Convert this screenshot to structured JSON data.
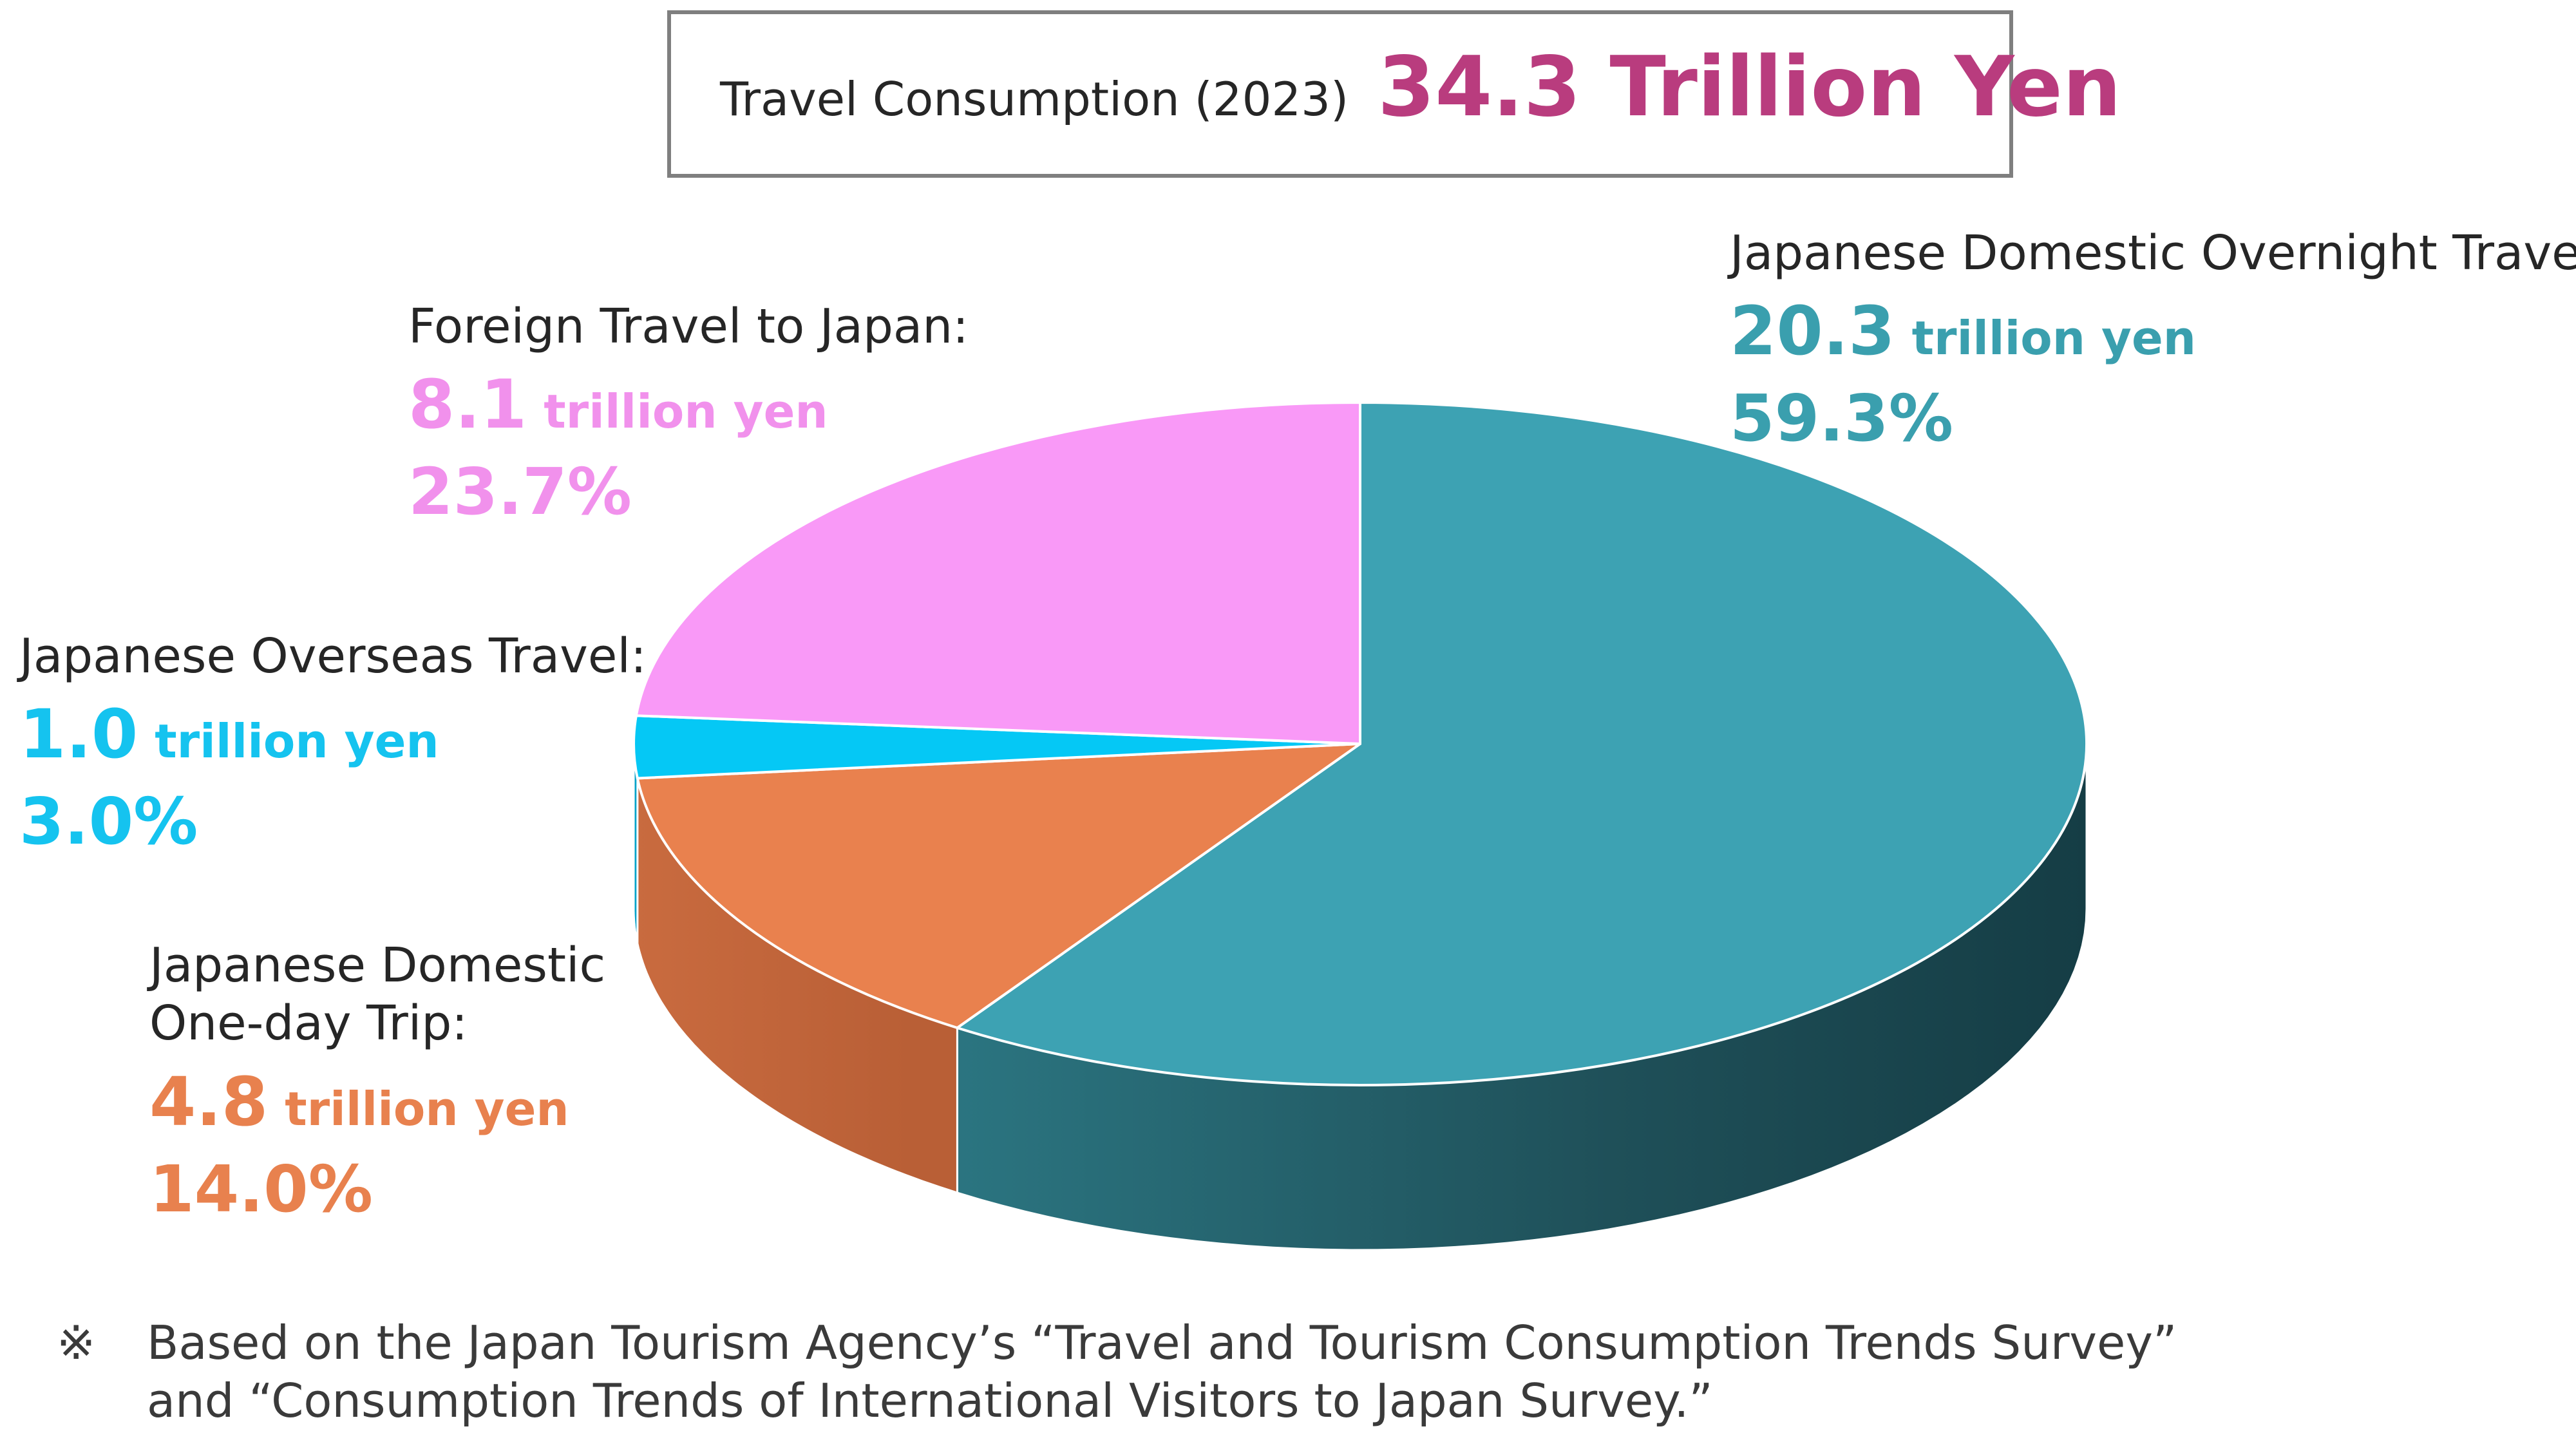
{
  "title": {
    "label": "Travel Consumption (2023)",
    "total": "34.3 Trillion Yen"
  },
  "chart_data": {
    "type": "pie",
    "style": "3d",
    "title": "Travel Consumption (2023) 34.3 Trillion Yen",
    "total": 34.3,
    "unit": "trillion yen",
    "slices": [
      {
        "name": "Japanese Domestic Overnight Travel:",
        "amount": "20.3",
        "unit": "trillion yen",
        "value": 20.3,
        "percent": "59.3%",
        "color": "#3da2b3",
        "label_color": "#3a9fae"
      },
      {
        "name": "Japanese Domestic One-day Trip:",
        "amount": "4.8",
        "unit": "trillion yen",
        "value": 4.8,
        "percent": "14.0%",
        "color": "#e9814e",
        "label_color": "#e8814e"
      },
      {
        "name": "Japanese Overseas Travel:",
        "amount": "1.0",
        "unit": "trillion yen",
        "value": 1.0,
        "percent": "3.0%",
        "color": "#05c8f5",
        "label_color": "#15c3ef"
      },
      {
        "name": "Foreign Travel to Japan:",
        "amount": "8.1",
        "unit": "trillion yen",
        "value": 8.1,
        "percent": "23.7%",
        "color": "#f999f7",
        "label_color": "#f191ec"
      }
    ]
  },
  "note": {
    "mark": "※",
    "line1": "Based on the Japan Tourism Agency’s “Travel and Tourism Consumption Trends Survey”",
    "line2": "and “Consumption Trends of International Visitors to Japan Survey.”"
  }
}
